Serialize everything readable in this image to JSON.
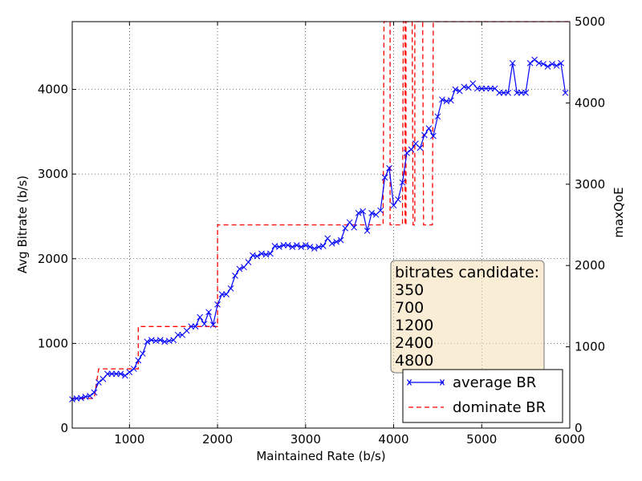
{
  "chart_data": {
    "type": "line",
    "xlabel": "Maintained Rate (b/s)",
    "ylabel": "Avg Bitrate (b/s)",
    "y2label": "maxQoE",
    "xlim": [
      350,
      6000
    ],
    "ylim": [
      0,
      4800
    ],
    "y2lim": [
      0,
      5000
    ],
    "x_ticks": [
      1000,
      2000,
      3000,
      4000,
      5000,
      6000
    ],
    "y_ticks": [
      0,
      1000,
      2000,
      3000,
      4000
    ],
    "y2_ticks": [
      0,
      1000,
      2000,
      3000,
      4000,
      5000
    ],
    "grid": true,
    "legend_position": "bottom-right",
    "colors": {
      "average": "#0000ff",
      "dominate": "#ff0000"
    },
    "annotation": {
      "title": "bitrates candidate:",
      "lines": [
        "350",
        "700",
        "1200",
        "2400",
        "4800"
      ]
    },
    "series": [
      {
        "name": "average BR",
        "style": "solid-x",
        "x": [
          350,
          400,
          450,
          500,
          550,
          600,
          650,
          700,
          750,
          800,
          850,
          900,
          950,
          1000,
          1050,
          1100,
          1150,
          1200,
          1250,
          1300,
          1350,
          1400,
          1450,
          1500,
          1550,
          1600,
          1650,
          1700,
          1750,
          1800,
          1850,
          1900,
          1950,
          2000,
          2050,
          2100,
          2150,
          2200,
          2250,
          2300,
          2350,
          2400,
          2450,
          2500,
          2550,
          2600,
          2650,
          2700,
          2750,
          2800,
          2850,
          2900,
          2950,
          3000,
          3050,
          3100,
          3150,
          3200,
          3250,
          3300,
          3350,
          3400,
          3450,
          3500,
          3550,
          3600,
          3650,
          3700,
          3750,
          3800,
          3850,
          3900,
          3950,
          4000,
          4050,
          4100,
          4150,
          4200,
          4250,
          4300,
          4350,
          4400,
          4450,
          4500,
          4550,
          4600,
          4650,
          4700,
          4750,
          4800,
          4850,
          4900,
          4950,
          5000,
          5050,
          5100,
          5150,
          5200,
          5250,
          5300,
          5350,
          5400,
          5450,
          5500,
          5550,
          5600,
          5650,
          5700,
          5750,
          5800,
          5850,
          5900,
          5950
        ],
        "y": [
          340,
          350,
          355,
          370,
          380,
          420,
          540,
          580,
          640,
          640,
          640,
          640,
          620,
          660,
          700,
          800,
          880,
          1020,
          1040,
          1030,
          1040,
          1020,
          1030,
          1040,
          1100,
          1100,
          1150,
          1200,
          1200,
          1310,
          1230,
          1370,
          1220,
          1460,
          1580,
          1580,
          1650,
          1800,
          1880,
          1900,
          1960,
          2040,
          2030,
          2060,
          2050,
          2060,
          2150,
          2140,
          2160,
          2160,
          2140,
          2160,
          2140,
          2160,
          2140,
          2120,
          2140,
          2150,
          2240,
          2180,
          2200,
          2220,
          2360,
          2430,
          2370,
          2540,
          2560,
          2330,
          2540,
          2520,
          2570,
          2960,
          3070,
          2630,
          2700,
          2900,
          3250,
          3290,
          3360,
          3310,
          3460,
          3540,
          3450,
          3680,
          3880,
          3860,
          3870,
          4000,
          3980,
          4030,
          4020,
          4070,
          4010,
          4010,
          4010,
          4010,
          4010,
          3960,
          3960,
          3960,
          4310,
          3960,
          3960,
          3960,
          4310,
          4350,
          4310,
          4300,
          4270,
          4300,
          4280,
          4310,
          3960
        ]
      },
      {
        "name": "dominate BR",
        "style": "dashed",
        "x": [
          350,
          600,
          650,
          650,
          1100,
          1100,
          1950,
          2000,
          2000,
          3880,
          3890,
          3960,
          3960,
          3990,
          3990,
          4100,
          4110,
          4130,
          4130,
          4140,
          4140,
          4210,
          4220,
          4240,
          4240,
          4260,
          4260,
          4330,
          4340,
          4440,
          4450,
          4500,
          4510,
          6000
        ],
        "y": [
          350,
          350,
          700,
          700,
          700,
          1200,
          1200,
          1200,
          2400,
          2400,
          4800,
          4800,
          2400,
          2400,
          2400,
          2400,
          4800,
          4800,
          2400,
          2400,
          4800,
          4800,
          2400,
          2400,
          4800,
          4800,
          4800,
          4800,
          2400,
          2400,
          4800,
          4800,
          4800,
          4800
        ]
      }
    ]
  }
}
